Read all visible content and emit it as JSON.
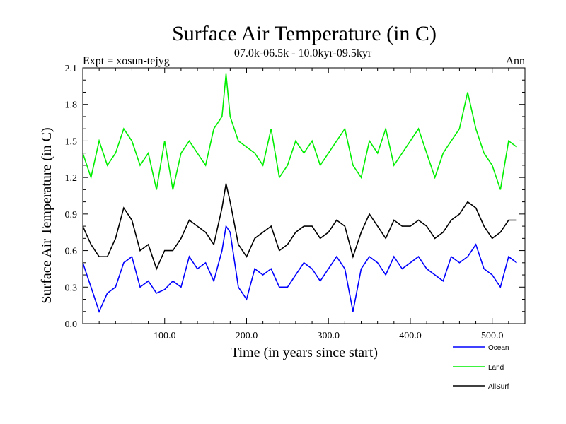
{
  "chart_data": {
    "type": "line",
    "title": "Surface Air Temperature (in C)",
    "subtitle": "07.0k-06.5k - 10.0kyr-09.5kyr",
    "left_header": "Expt = xosun-tejyg",
    "right_header": "Ann",
    "xlabel": "Time (in years since start)",
    "ylabel": "Surface Air Temperature (in C)",
    "xlim": [
      0,
      540
    ],
    "ylim": [
      0.0,
      2.1
    ],
    "x_ticks": [
      100,
      200,
      300,
      400,
      500
    ],
    "x_tick_labels": [
      "100.0",
      "200.0",
      "300.0",
      "400.0",
      "500.0"
    ],
    "y_ticks": [
      0.0,
      0.3,
      0.6,
      0.9,
      1.2,
      1.5,
      1.8,
      2.1
    ],
    "y_tick_labels": [
      "0.0",
      "0.3",
      "0.6",
      "0.9",
      "1.2",
      "1.5",
      "1.8",
      "2.1"
    ],
    "x": [
      0,
      10,
      20,
      30,
      40,
      50,
      60,
      70,
      80,
      90,
      100,
      110,
      120,
      130,
      140,
      150,
      160,
      170,
      175,
      180,
      190,
      200,
      210,
      220,
      230,
      240,
      250,
      260,
      270,
      280,
      290,
      300,
      310,
      320,
      330,
      340,
      350,
      360,
      370,
      380,
      390,
      400,
      410,
      420,
      430,
      440,
      450,
      460,
      470,
      480,
      490,
      500,
      510,
      520,
      530
    ],
    "series": [
      {
        "name": "Ocean",
        "color": "#0000ff",
        "values": [
          0.5,
          0.3,
          0.1,
          0.25,
          0.3,
          0.5,
          0.55,
          0.3,
          0.35,
          0.25,
          0.28,
          0.35,
          0.3,
          0.55,
          0.45,
          0.5,
          0.35,
          0.6,
          0.8,
          0.75,
          0.3,
          0.2,
          0.45,
          0.4,
          0.45,
          0.3,
          0.3,
          0.4,
          0.5,
          0.45,
          0.35,
          0.45,
          0.55,
          0.45,
          0.1,
          0.45,
          0.55,
          0.5,
          0.4,
          0.55,
          0.45,
          0.5,
          0.55,
          0.45,
          0.4,
          0.35,
          0.55,
          0.5,
          0.55,
          0.65,
          0.45,
          0.4,
          0.3,
          0.55,
          0.5
        ]
      },
      {
        "name": "Land",
        "color": "#00ee00",
        "values": [
          1.4,
          1.2,
          1.5,
          1.3,
          1.4,
          1.6,
          1.5,
          1.3,
          1.4,
          1.1,
          1.5,
          1.1,
          1.4,
          1.5,
          1.4,
          1.3,
          1.6,
          1.7,
          2.05,
          1.7,
          1.5,
          1.45,
          1.4,
          1.3,
          1.6,
          1.2,
          1.3,
          1.5,
          1.4,
          1.5,
          1.3,
          1.4,
          1.5,
          1.6,
          1.3,
          1.2,
          1.5,
          1.4,
          1.6,
          1.3,
          1.4,
          1.5,
          1.6,
          1.4,
          1.2,
          1.4,
          1.5,
          1.6,
          1.9,
          1.6,
          1.4,
          1.3,
          1.1,
          1.5,
          1.45
        ]
      },
      {
        "name": "AllSurf",
        "color": "#000000",
        "values": [
          0.8,
          0.65,
          0.55,
          0.55,
          0.7,
          0.95,
          0.85,
          0.6,
          0.65,
          0.45,
          0.6,
          0.6,
          0.7,
          0.85,
          0.8,
          0.75,
          0.65,
          0.95,
          1.15,
          1.0,
          0.65,
          0.55,
          0.7,
          0.75,
          0.8,
          0.6,
          0.65,
          0.75,
          0.8,
          0.8,
          0.7,
          0.75,
          0.85,
          0.8,
          0.55,
          0.75,
          0.9,
          0.8,
          0.7,
          0.85,
          0.8,
          0.8,
          0.85,
          0.8,
          0.7,
          0.75,
          0.85,
          0.9,
          1.0,
          0.95,
          0.8,
          0.7,
          0.75,
          0.85,
          0.85
        ]
      }
    ],
    "legend_position": "bottom-right"
  }
}
